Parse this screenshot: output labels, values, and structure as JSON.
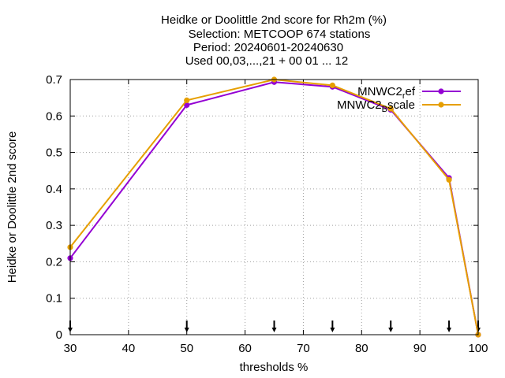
{
  "chart_data": {
    "type": "line",
    "title_lines": [
      "Heidke or Doolittle 2nd score  for Rh2m (%)",
      "Selection: METCOOP    674 stations",
      "Period: 20240601-20240630",
      "Used 00,03,...,21 + 00 01 ... 12"
    ],
    "xlabel": "thresholds %",
    "ylabel": "Heidke or Doolittle 2nd score",
    "xlim": [
      30,
      100
    ],
    "ylim": [
      0,
      0.7
    ],
    "xticks": [
      30,
      40,
      50,
      60,
      70,
      80,
      90,
      100
    ],
    "yticks": [
      0,
      0.1,
      0.2,
      0.3,
      0.4,
      0.5,
      0.6,
      0.7
    ],
    "xtick_labels": [
      "30",
      "40",
      "50",
      "60",
      "70",
      "80",
      "90",
      "100"
    ],
    "ytick_labels": [
      "0",
      "0.1",
      "0.2",
      "0.3",
      "0.4",
      "0.5",
      "0.6",
      "0.7"
    ],
    "grid": true,
    "legend_position": "top-right",
    "arrow_markers_x": [
      30,
      50,
      65,
      75,
      85,
      95,
      100
    ],
    "series": [
      {
        "name_main": "MNWC2",
        "name_sub": "r",
        "name_tail": "ef",
        "color": "#9400d3",
        "x": [
          30,
          50,
          65,
          75,
          85,
          95,
          100
        ],
        "y": [
          0.21,
          0.63,
          0.693,
          0.68,
          0.617,
          0.43,
          0.0
        ]
      },
      {
        "name_main": "MNWC2",
        "name_sub": "B",
        "name_tail": "scale",
        "color": "#e69f00",
        "x": [
          30,
          50,
          65,
          75,
          85,
          95,
          100
        ],
        "y": [
          0.24,
          0.643,
          0.7,
          0.684,
          0.62,
          0.425,
          0.0
        ]
      }
    ]
  }
}
